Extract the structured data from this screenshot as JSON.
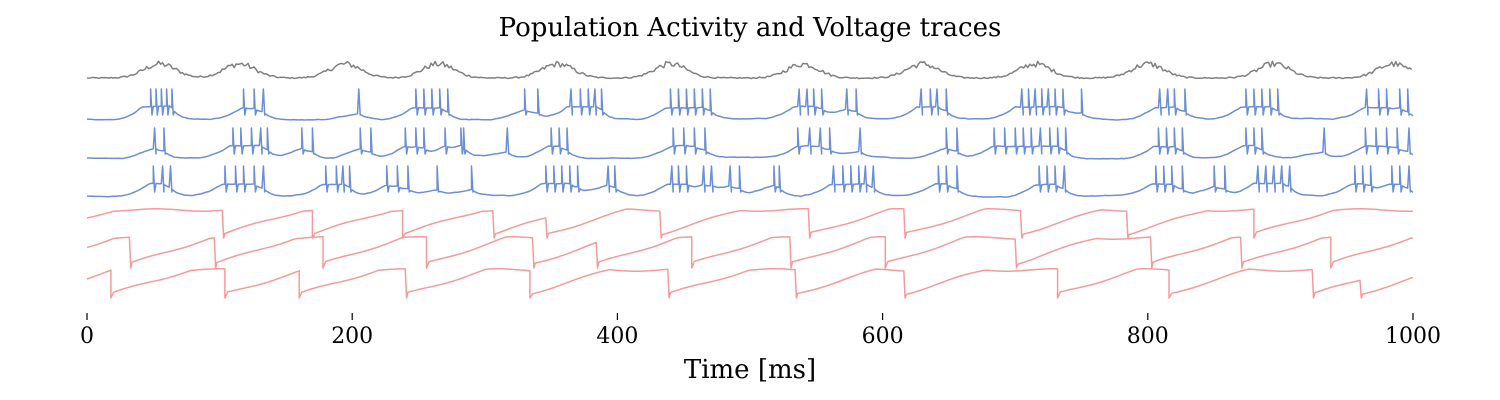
{
  "chart_data": {
    "type": "line",
    "title": "Population Activity and Voltage traces",
    "xlabel": "Time [ms]",
    "ylabel": "",
    "xlim": [
      0,
      1000
    ],
    "xticks": [
      "0",
      "200",
      "400",
      "600",
      "800",
      "1000"
    ],
    "grid": false,
    "legend": "none",
    "colors": {
      "population": "#808080",
      "excitatory": "#6b8ed6",
      "inhibitory": "#f59a9a"
    },
    "population_activity": {
      "color": "population",
      "burst_times": [
        55,
        115,
        195,
        265,
        355,
        440,
        540,
        630,
        715,
        800,
        895,
        985
      ]
    },
    "excitatory_traces": [
      {
        "color": "excitatory",
        "spikes": [
          48,
          52,
          56,
          60,
          64,
          118,
          126,
          133,
          205,
          248,
          254,
          260,
          266,
          272,
          330,
          340,
          365,
          372,
          378,
          383,
          388,
          440,
          446,
          452,
          458,
          464,
          470,
          537,
          543,
          548,
          554,
          573,
          580,
          629,
          636,
          641,
          648,
          705,
          710,
          715,
          720,
          725,
          730,
          736,
          750,
          809,
          815,
          820,
          828,
          874,
          880,
          886,
          892,
          898,
          965,
          974,
          980,
          990,
          996
        ]
      },
      {
        "color": "excitatory",
        "spikes": [
          51,
          58,
          110,
          116,
          124,
          131,
          136,
          162,
          170,
          206,
          214,
          240,
          248,
          254,
          270,
          284,
          282,
          317,
          350,
          356,
          362,
          442,
          450,
          458,
          466,
          536,
          545,
          553,
          560,
          583,
          648,
          656,
          684,
          692,
          700,
          706,
          712,
          719,
          726,
          732,
          738,
          808,
          814,
          820,
          826,
          874,
          880,
          886,
          933,
          964,
          972,
          980,
          988,
          997
        ]
      },
      {
        "color": "excitatory",
        "spikes": [
          50,
          57,
          63,
          104,
          112,
          118,
          126,
          133,
          180,
          188,
          193,
          198,
          226,
          234,
          242,
          264,
          290,
          346,
          352,
          358,
          364,
          370,
          393,
          398,
          441,
          446,
          452,
          465,
          471,
          485,
          492,
          518,
          522,
          563,
          570,
          576,
          582,
          587,
          593,
          642,
          648,
          656,
          718,
          724,
          730,
          737,
          806,
          812,
          818,
          826,
          850,
          858,
          883,
          889,
          895,
          901,
          907,
          956,
          962,
          968,
          984,
          990,
          997
        ]
      }
    ],
    "inhibitory_traces": [
      {
        "color": "inhibitory",
        "resets": [
          103,
          170,
          238,
          307,
          347,
          433,
          545,
          617,
          705,
          785,
          880
        ]
      },
      {
        "color": "inhibitory",
        "resets": [
          33,
          97,
          178,
          256,
          337,
          385,
          456,
          531,
          602,
          701,
          803,
          871,
          938
        ]
      },
      {
        "color": "inhibitory",
        "resets": [
          18,
          104,
          160,
          241,
          334,
          439,
          535,
          617,
          732,
          816,
          925,
          961
        ]
      }
    ]
  }
}
